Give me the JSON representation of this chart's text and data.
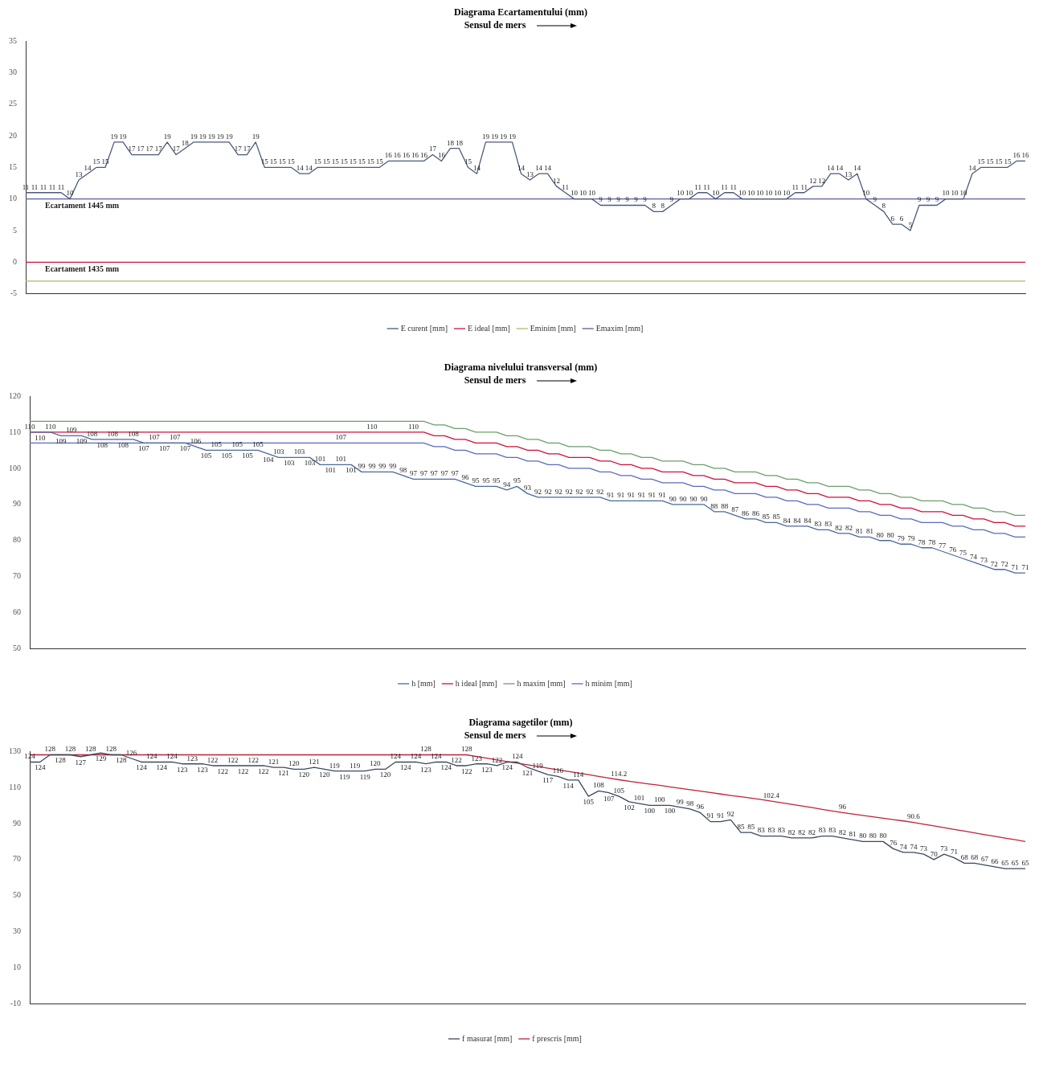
{
  "chart_data": [
    {
      "type": "line",
      "title": "Diagrama Ecartamentului (mm)",
      "annotations": [
        "Sensul de mers",
        {
          "text": "Ecartament 1445 mm",
          "y": 10
        },
        {
          "text": "Ecartament 1435 mm",
          "y": 0
        }
      ],
      "categories": [
        null,
        null,
        null,
        null,
        null,
        null,
        null,
        null,
        null,
        null,
        null,
        null,
        null,
        null,
        null,
        null,
        null,
        null,
        null,
        null,
        null,
        null,
        null,
        null,
        null,
        null,
        null,
        null,
        null,
        null,
        null,
        null,
        null,
        null,
        null,
        null,
        null,
        null,
        null,
        null,
        null,
        null,
        null,
        null,
        null,
        null,
        null,
        null,
        null,
        null,
        null,
        null,
        null,
        null,
        null,
        null,
        null,
        null,
        null,
        null,
        null,
        null,
        null,
        null,
        null,
        null,
        null,
        null,
        null,
        null,
        null,
        null,
        null,
        null,
        null,
        null,
        null,
        null,
        null,
        null,
        null,
        null,
        null,
        null,
        null,
        null,
        null,
        null,
        null,
        null,
        null,
        null,
        null,
        null,
        null,
        null,
        null,
        null,
        null,
        null,
        null,
        null,
        null,
        null,
        null,
        null,
        null,
        null,
        null,
        null,
        null,
        null,
        null,
        null
      ],
      "ylim": [
        -5,
        35
      ],
      "yticks": [
        -5,
        0,
        5,
        10,
        15,
        20,
        25,
        30,
        35
      ],
      "legend": "bottom",
      "marker": "none",
      "series": [
        {
          "name": "E curent [mm]",
          "color": "#4a5a7a",
          "data_labels": true,
          "values": [
            11,
            11,
            11,
            11,
            11,
            10,
            13,
            14,
            15,
            15,
            19,
            19,
            17,
            17,
            17,
            17,
            19,
            17,
            18,
            19,
            19,
            19,
            19,
            19,
            17,
            17,
            19,
            15,
            15,
            15,
            15,
            14,
            14,
            15,
            15,
            15,
            15,
            15,
            15,
            15,
            15,
            16,
            16,
            16,
            16,
            16,
            17,
            16,
            18,
            18,
            15,
            14,
            19,
            19,
            19,
            19,
            14,
            13,
            14,
            14,
            12,
            11,
            10,
            10,
            10,
            9,
            9,
            9,
            9,
            9,
            9,
            8,
            8,
            9,
            10,
            10,
            11,
            11,
            10,
            11,
            11,
            10,
            10,
            10,
            10,
            10,
            10,
            11,
            11,
            12,
            12,
            14,
            14,
            13,
            14,
            10,
            9,
            8,
            6,
            6,
            5,
            9,
            9,
            9,
            10,
            10,
            10,
            14,
            15,
            15,
            15,
            15,
            16,
            16
          ]
        },
        {
          "name": "E ideal [mm]",
          "color": "#d0103a",
          "values": [
            0,
            0,
            0,
            0,
            0,
            0,
            0,
            0,
            0,
            0,
            0,
            0,
            0,
            0,
            0,
            0,
            0,
            0,
            0,
            0,
            0,
            0,
            0,
            0,
            0,
            0,
            0,
            0,
            0,
            0,
            0,
            0,
            0,
            0,
            0,
            0,
            0,
            0,
            0,
            0,
            0,
            0,
            0,
            0,
            0,
            0,
            0,
            0,
            0,
            0,
            0,
            0,
            0,
            0,
            0,
            0,
            0,
            0,
            0,
            0,
            0,
            0,
            0,
            0,
            0,
            0,
            0,
            0,
            0,
            0,
            0,
            0,
            0,
            0,
            0,
            0,
            0,
            0,
            0,
            0,
            0,
            0,
            0,
            0,
            0,
            0,
            0,
            0,
            0,
            0,
            0,
            0,
            0,
            0,
            0,
            0,
            0,
            0,
            0,
            0,
            0,
            0,
            0,
            0,
            0,
            0,
            0,
            0,
            0,
            0,
            0,
            0,
            0,
            0
          ]
        },
        {
          "name": "Eminim [mm]",
          "color": "#b5b56a",
          "values": [
            -3,
            -3,
            -3,
            -3,
            -3,
            -3,
            -3,
            -3,
            -3,
            -3,
            -3,
            -3,
            -3,
            -3,
            -3,
            -3,
            -3,
            -3,
            -3,
            -3,
            -3,
            -3,
            -3,
            -3,
            -3,
            -3,
            -3,
            -3,
            -3,
            -3,
            -3,
            -3,
            -3,
            -3,
            -3,
            -3,
            -3,
            -3,
            -3,
            -3,
            -3,
            -3,
            -3,
            -3,
            -3,
            -3,
            -3,
            -3,
            -3,
            -3,
            -3,
            -3,
            -3,
            -3,
            -3,
            -3,
            -3,
            -3,
            -3,
            -3,
            -3,
            -3,
            -3,
            -3,
            -3,
            -3,
            -3,
            -3,
            -3,
            -3,
            -3,
            -3,
            -3,
            -3,
            -3,
            -3,
            -3,
            -3,
            -3,
            -3,
            -3,
            -3,
            -3,
            -3,
            -3,
            -3,
            -3,
            -3,
            -3,
            -3,
            -3,
            -3,
            -3,
            -3,
            -3,
            -3,
            -3,
            -3,
            -3,
            -3,
            -3,
            -3,
            -3,
            -3,
            -3,
            -3,
            -3,
            -3,
            -3,
            -3,
            -3,
            -3,
            -3,
            -3
          ]
        },
        {
          "name": "Emaxim [mm]",
          "color": "#5a5aa8",
          "values": [
            10,
            10,
            10,
            10,
            10,
            10,
            10,
            10,
            10,
            10,
            10,
            10,
            10,
            10,
            10,
            10,
            10,
            10,
            10,
            10,
            10,
            10,
            10,
            10,
            10,
            10,
            10,
            10,
            10,
            10,
            10,
            10,
            10,
            10,
            10,
            10,
            10,
            10,
            10,
            10,
            10,
            10,
            10,
            10,
            10,
            10,
            10,
            10,
            10,
            10,
            10,
            10,
            10,
            10,
            10,
            10,
            10,
            10,
            10,
            10,
            10,
            10,
            10,
            10,
            10,
            10,
            10,
            10,
            10,
            10,
            10,
            10,
            10,
            10,
            10,
            10,
            10,
            10,
            10,
            10,
            10,
            10,
            10,
            10,
            10,
            10,
            10,
            10,
            10,
            10,
            10,
            10,
            10,
            10,
            10,
            10,
            10,
            10,
            10,
            10,
            10,
            10,
            10,
            10,
            10,
            10,
            10,
            10,
            10,
            10,
            10,
            10,
            10,
            10
          ]
        }
      ]
    },
    {
      "type": "line",
      "title": "Diagrama nivelului transversal (mm)",
      "annotations": [
        "Sensul de mers"
      ],
      "categories": [
        null,
        null,
        null,
        null,
        null,
        null,
        null,
        null,
        null,
        null,
        null,
        null,
        null,
        null,
        null,
        null,
        null,
        null,
        null,
        null,
        null,
        null,
        null,
        null,
        null,
        null,
        null,
        null,
        null,
        null,
        null,
        null,
        null,
        null,
        null,
        null,
        null,
        null,
        null,
        null,
        null,
        null,
        null,
        null,
        null,
        null,
        null,
        null,
        null,
        null,
        null,
        null,
        null,
        null,
        null,
        null,
        null,
        null,
        null,
        null,
        null,
        null,
        null,
        null,
        null,
        null,
        null,
        null,
        null,
        null,
        null,
        null,
        null,
        null,
        null,
        null,
        null,
        null,
        null,
        null,
        null,
        null,
        null,
        null,
        null,
        null,
        null,
        null,
        null,
        null,
        null,
        null,
        null,
        null,
        null,
        null,
        null
      ],
      "ylim": [
        50,
        120
      ],
      "yticks": [
        50,
        60,
        70,
        80,
        90,
        100,
        110,
        120
      ],
      "legend": "bottom",
      "marker": "none",
      "series": [
        {
          "name": "h [mm]",
          "color": "#4a6a9a",
          "data_labels": true,
          "values": [
            110,
            110,
            110,
            109,
            109,
            109,
            108,
            108,
            108,
            108,
            108,
            107,
            107,
            107,
            107,
            107,
            106,
            105,
            105,
            105,
            105,
            105,
            105,
            104,
            103,
            103,
            103,
            103,
            101,
            101,
            101,
            101,
            99,
            99,
            99,
            99,
            98,
            97,
            97,
            97,
            97,
            97,
            96,
            95,
            95,
            95,
            94,
            95,
            93,
            92,
            92,
            92,
            92,
            92,
            92,
            92,
            91,
            91,
            91,
            91,
            91,
            91,
            90,
            90,
            90,
            90,
            88,
            88,
            87,
            86,
            86,
            85,
            85,
            84,
            84,
            84,
            83,
            83,
            82,
            82,
            81,
            81,
            80,
            80,
            79,
            79,
            78,
            78,
            77,
            76,
            75,
            74,
            73,
            72,
            72,
            71,
            71
          ]
        },
        {
          "name": "h ideal [mm]",
          "color": "#d0103a",
          "values": [
            110,
            110,
            110,
            110,
            110,
            110,
            110,
            110,
            110,
            110,
            110,
            110,
            110,
            110,
            110,
            110,
            110,
            110,
            110,
            110,
            110,
            110,
            110,
            110,
            110,
            110,
            110,
            110,
            110,
            110,
            110,
            110,
            110,
            110,
            110,
            110,
            110,
            110,
            110,
            109,
            109,
            108,
            108,
            107,
            107,
            107,
            106,
            106,
            105,
            105,
            104,
            104,
            103,
            103,
            103,
            102,
            102,
            101,
            101,
            100,
            100,
            99,
            99,
            99,
            98,
            98,
            97,
            97,
            96,
            96,
            96,
            95,
            95,
            94,
            94,
            93,
            93,
            92,
            92,
            92,
            91,
            91,
            90,
            90,
            89,
            89,
            88,
            88,
            88,
            87,
            87,
            86,
            86,
            85,
            85,
            84,
            84
          ],
          "value_labels": [
            null,
            null,
            null,
            null,
            null,
            null,
            null,
            null,
            null,
            null,
            null,
            null,
            null,
            null,
            null,
            null,
            null,
            null,
            null,
            null,
            null,
            null,
            null,
            null,
            null,
            null,
            null,
            null,
            null,
            null,
            null,
            null,
            null,
            "110",
            null,
            null,
            null,
            "110",
            null,
            null,
            null,
            null,
            null,
            null,
            null,
            null,
            null,
            null,
            null,
            null,
            null,
            null,
            null,
            null,
            null,
            null,
            null,
            null,
            null,
            null,
            null,
            null,
            null,
            null,
            null,
            null,
            null,
            null,
            null,
            null,
            null,
            null,
            null,
            null,
            null,
            null,
            null,
            null,
            null,
            null,
            null,
            null,
            null,
            null,
            null,
            null,
            null,
            null,
            null,
            null,
            null,
            null,
            null,
            null,
            null,
            null,
            null
          ]
        },
        {
          "name": "h maxim [mm]",
          "color": "#6aa06a",
          "values": [
            113,
            113,
            113,
            113,
            113,
            113,
            113,
            113,
            113,
            113,
            113,
            113,
            113,
            113,
            113,
            113,
            113,
            113,
            113,
            113,
            113,
            113,
            113,
            113,
            113,
            113,
            113,
            113,
            113,
            113,
            113,
            113,
            113,
            113,
            113,
            113,
            113,
            113,
            113,
            112,
            112,
            111,
            111,
            110,
            110,
            110,
            109,
            109,
            108,
            108,
            107,
            107,
            106,
            106,
            106,
            105,
            105,
            104,
            104,
            103,
            103,
            102,
            102,
            102,
            101,
            101,
            100,
            100,
            99,
            99,
            99,
            98,
            98,
            97,
            97,
            96,
            96,
            95,
            95,
            95,
            94,
            94,
            93,
            93,
            92,
            92,
            91,
            91,
            91,
            90,
            90,
            89,
            89,
            88,
            88,
            87,
            87
          ]
        },
        {
          "name": "h minim [mm]",
          "color": "#5a6ac0",
          "values": [
            107,
            107,
            107,
            107,
            107,
            107,
            107,
            107,
            107,
            107,
            107,
            107,
            107,
            107,
            107,
            107,
            107,
            107,
            107,
            107,
            107,
            107,
            107,
            107,
            107,
            107,
            107,
            107,
            107,
            107,
            107,
            107,
            107,
            107,
            107,
            107,
            107,
            107,
            107,
            106,
            106,
            105,
            105,
            104,
            104,
            104,
            103,
            103,
            102,
            102,
            101,
            101,
            100,
            100,
            100,
            99,
            99,
            98,
            98,
            97,
            97,
            96,
            96,
            96,
            95,
            95,
            94,
            94,
            93,
            93,
            93,
            92,
            92,
            91,
            91,
            90,
            90,
            89,
            89,
            89,
            88,
            88,
            87,
            87,
            86,
            86,
            85,
            85,
            85,
            84,
            84,
            83,
            83,
            82,
            82,
            81,
            81
          ],
          "value_labels": [
            null,
            null,
            null,
            null,
            null,
            null,
            null,
            null,
            null,
            null,
            null,
            null,
            null,
            null,
            null,
            null,
            null,
            null,
            null,
            null,
            null,
            null,
            null,
            null,
            null,
            null,
            null,
            null,
            null,
            null,
            "107",
            null,
            null,
            null,
            null,
            null,
            null,
            null,
            null,
            null,
            null,
            null,
            null,
            null,
            null,
            null,
            null,
            null,
            null,
            null,
            null,
            null,
            null,
            null,
            null,
            null,
            null,
            null,
            null,
            null,
            null,
            null,
            null,
            null,
            null,
            null,
            null,
            null,
            null,
            null,
            null,
            null,
            null,
            null,
            null,
            null,
            null,
            null,
            null,
            null,
            null,
            null,
            null,
            null,
            null,
            null,
            null,
            null,
            null,
            null,
            null,
            null,
            null,
            null,
            null,
            null,
            null
          ]
        }
      ]
    },
    {
      "type": "line",
      "title": "Diagrama sagetilor (mm)",
      "annotations": [
        "Sensul de mers"
      ],
      "categories": [
        null,
        null,
        null,
        null,
        null,
        null,
        null,
        null,
        null,
        null,
        null,
        null,
        null,
        null,
        null,
        null,
        null,
        null,
        null,
        null,
        null,
        null,
        null,
        null,
        null,
        null,
        null,
        null,
        null,
        null,
        null,
        null,
        null,
        null,
        null,
        null,
        null,
        null,
        null,
        null,
        null,
        null,
        null,
        null,
        null,
        null,
        null,
        null,
        null,
        null,
        null,
        null,
        null,
        null,
        null,
        null,
        null,
        null,
        null,
        null,
        null,
        null,
        null,
        null,
        null,
        null,
        null,
        null,
        null,
        null,
        null,
        null,
        null,
        null,
        null,
        null,
        null,
        null,
        null,
        null,
        null,
        null,
        null,
        null,
        null,
        null,
        null,
        null,
        null,
        null,
        null,
        null,
        null,
        null,
        null,
        null,
        null,
        null,
        null
      ],
      "ylim": [
        -10,
        130
      ],
      "yticks": [
        -10,
        10,
        30,
        50,
        70,
        90,
        110,
        130
      ],
      "legend": "bottom",
      "marker": "none",
      "series": [
        {
          "name": "f masurat [mm]",
          "color": "#3a4a5a",
          "data_labels": true,
          "values": [
            124,
            124,
            128,
            128,
            128,
            127,
            128,
            129,
            128,
            128,
            126,
            124,
            124,
            124,
            124,
            123,
            123,
            123,
            122,
            122,
            122,
            122,
            122,
            122,
            121,
            121,
            120,
            120,
            121,
            120,
            119,
            119,
            119,
            119,
            120,
            120,
            124,
            124,
            124,
            123,
            124,
            124,
            122,
            122,
            123,
            123,
            122,
            124,
            124,
            121,
            119,
            117,
            116,
            114,
            114,
            105,
            108,
            107,
            105,
            102,
            101,
            100,
            100,
            100,
            99,
            98,
            96,
            91,
            91,
            92,
            85,
            85,
            83,
            83,
            83,
            82,
            82,
            82,
            83,
            83,
            82,
            81,
            80,
            80,
            80,
            76,
            74,
            74,
            73,
            70,
            73,
            71,
            68,
            68,
            67,
            66,
            65,
            65,
            65
          ]
        },
        {
          "name": "f prescris [mm]",
          "color": "#c0203a",
          "values": [
            128,
            128,
            128,
            128,
            128,
            128,
            128,
            128,
            128,
            128,
            128,
            128,
            128,
            128,
            128,
            128,
            128,
            128,
            128,
            128,
            128,
            128,
            128,
            128,
            128,
            128,
            128,
            128,
            128,
            128,
            128,
            128,
            128,
            128,
            128,
            128,
            128,
            128,
            128,
            128,
            128,
            128,
            128,
            128,
            127.1,
            126.2,
            125.2,
            124.3,
            123.4,
            122.5,
            121.6,
            120.6,
            119.7,
            118.8,
            117.9,
            117.0,
            116.0,
            115.1,
            114.2,
            113.4,
            112.6,
            111.8,
            111.1,
            110.3,
            109.5,
            108.7,
            107.9,
            107.1,
            106.3,
            105.5,
            104.8,
            104.0,
            103.2,
            102.4,
            101.5,
            100.6,
            99.7,
            98.8,
            97.8,
            96.9,
            96,
            95.2,
            94.5,
            93.7,
            92.9,
            92.1,
            91.4,
            90.6,
            89.6,
            88.7,
            87.7,
            86.7,
            85.8,
            84.8,
            83.8,
            82.9,
            81.9,
            81.0,
            80
          ],
          "value_labels": [
            null,
            null,
            null,
            null,
            null,
            null,
            null,
            null,
            null,
            null,
            null,
            null,
            null,
            null,
            null,
            null,
            null,
            null,
            null,
            null,
            null,
            null,
            null,
            null,
            null,
            null,
            null,
            null,
            null,
            null,
            null,
            null,
            null,
            null,
            null,
            null,
            null,
            null,
            null,
            "128",
            null,
            null,
            null,
            "128",
            null,
            null,
            null,
            null,
            null,
            null,
            null,
            null,
            null,
            null,
            null,
            null,
            null,
            null,
            "114.2",
            null,
            null,
            null,
            null,
            null,
            null,
            null,
            null,
            null,
            null,
            null,
            null,
            null,
            null,
            "102.4",
            null,
            null,
            null,
            null,
            null,
            null,
            "96",
            null,
            null,
            null,
            null,
            null,
            null,
            "90.6",
            null,
            null,
            null,
            null,
            null,
            null,
            null,
            null,
            null,
            null,
            null
          ]
        }
      ]
    }
  ]
}
